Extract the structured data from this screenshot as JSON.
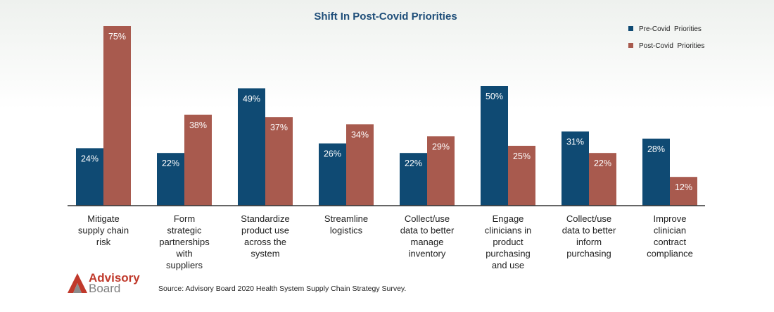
{
  "chart_data": {
    "type": "bar",
    "title": "Shift In Post-Covid Priorities",
    "categories": [
      [
        "Mitigate",
        "supply chain",
        "risk"
      ],
      [
        "Form",
        "strategic",
        "partnerships",
        "with",
        "suppliers"
      ],
      [
        "Standardize",
        "product use",
        "across the",
        "system"
      ],
      [
        "Streamline",
        "logistics"
      ],
      [
        "Collect/use",
        "data to better",
        "manage",
        "inventory"
      ],
      [
        "Engage",
        "clinicians in",
        "product",
        "purchasing",
        "and use"
      ],
      [
        "Collect/use",
        "data to better",
        "inform",
        "purchasing"
      ],
      [
        "Improve",
        "clinician",
        "contract",
        "compliance"
      ]
    ],
    "series": [
      {
        "name": "Pre-Covid  Priorities",
        "color": "#0f4a73",
        "values": [
          24,
          22,
          49,
          26,
          22,
          50,
          31,
          28
        ]
      },
      {
        "name": "Post-Covid  Priorities",
        "color": "#a85a4e",
        "values": [
          75,
          38,
          37,
          34,
          29,
          25,
          22,
          12
        ]
      }
    ],
    "value_suffix": "%",
    "ylim": [
      0,
      80
    ],
    "legend_position": "top-right",
    "grid": false
  },
  "source": "Source: Advisory Board 2020 Health System Supply Chain Strategy Survey.",
  "logo": {
    "line1": "Advisory",
    "line2": "Board"
  }
}
